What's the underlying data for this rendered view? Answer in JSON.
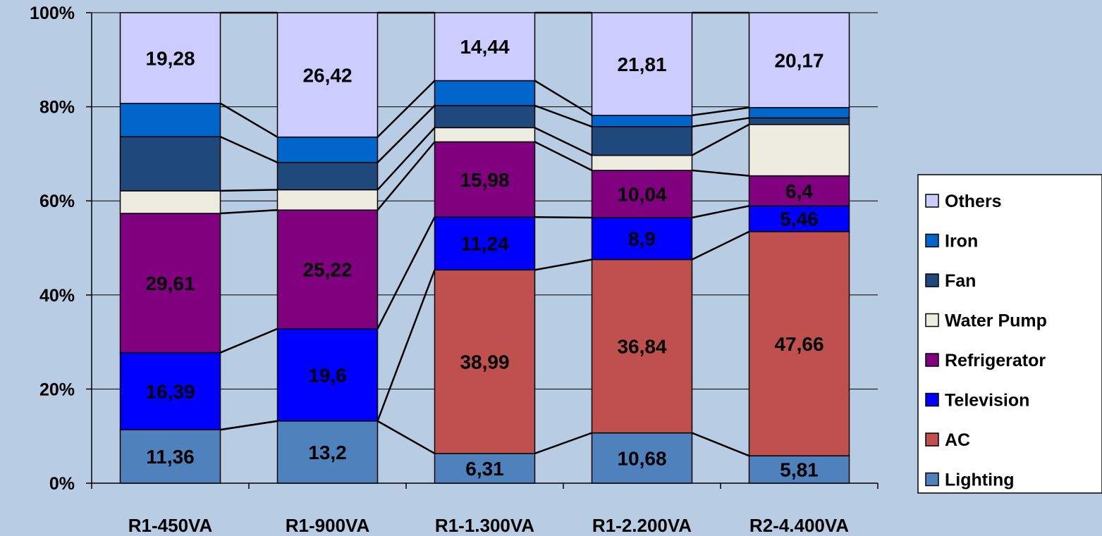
{
  "chart_data": {
    "type": "bar",
    "stacked": "percent",
    "categories": [
      "R1-450VA",
      "R1-900VA",
      "R1-1.300VA",
      "R1-2.200VA",
      "R2-4.400VA"
    ],
    "y_tick_labels": [
      "0%",
      "20%",
      "40%",
      "60%",
      "80%",
      "100%"
    ],
    "ylim": [
      0,
      100
    ],
    "grid": true,
    "series_lines": true,
    "legend_position": "right",
    "series": [
      {
        "name": "Lighting",
        "color": "#4f81bd",
        "values": [
          11.36,
          13.2,
          6.31,
          10.68,
          5.81
        ],
        "labels": [
          "11,36",
          "13,2",
          "6,31",
          "10,68",
          "5,81"
        ]
      },
      {
        "name": "AC",
        "color": "#c0504d",
        "values": [
          0,
          0,
          38.99,
          36.84,
          47.66
        ],
        "labels": [
          "",
          "",
          "38,99",
          "36,84",
          "47,66"
        ]
      },
      {
        "name": "Television",
        "color": "#0000ff",
        "values": [
          16.39,
          19.6,
          11.24,
          8.9,
          5.46
        ],
        "labels": [
          "16,39",
          "19,6",
          "11,24",
          "8,9",
          "5,46"
        ]
      },
      {
        "name": "Refrigerator",
        "color": "#800080",
        "values": [
          29.61,
          25.22,
          15.98,
          10.04,
          6.4
        ],
        "labels": [
          "29,61",
          "25,22",
          "15,98",
          "10,04",
          "6,4"
        ]
      },
      {
        "name": "Water Pump",
        "color": "#eeece1",
        "values": [
          4.8,
          4.3,
          3.0,
          3.2,
          10.9
        ],
        "labels": [
          "",
          "",
          "",
          "",
          ""
        ]
      },
      {
        "name": "Fan",
        "color": "#1f497d",
        "values": [
          11.5,
          5.8,
          4.7,
          6.1,
          1.4
        ],
        "labels": [
          "",
          "",
          "",
          "",
          ""
        ]
      },
      {
        "name": "Iron",
        "color": "#0066cc",
        "values": [
          7.1,
          5.4,
          5.3,
          2.4,
          2.2
        ],
        "labels": [
          "",
          "",
          "",
          "",
          ""
        ]
      },
      {
        "name": "Others",
        "color": "#ccccff",
        "values": [
          19.28,
          26.42,
          14.44,
          21.81,
          20.17
        ],
        "labels": [
          "19,28",
          "26,42",
          "14,44",
          "21,81",
          "20,17"
        ]
      }
    ]
  }
}
